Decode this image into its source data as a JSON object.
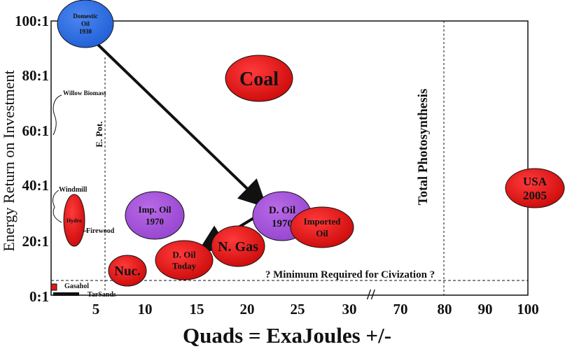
{
  "chart_data": {
    "type": "bubble",
    "title": "",
    "xlabel": "Quads = ExaJoules +/-",
    "ylabel": "Energy Return on Investment",
    "x_tick_labels": [
      "5",
      "10",
      "15",
      "20",
      "25",
      "30",
      "70",
      "80",
      "90",
      "100"
    ],
    "y_tick_labels": [
      "0:1",
      "20:1",
      "40:1",
      "60:1",
      "80:1",
      "100:1"
    ],
    "ylim": [
      0,
      100
    ],
    "x_axis_break": "//",
    "axis_break_between": [
      "30",
      "70"
    ],
    "reference_lines": [
      {
        "label": "? Minimum Required for Civization ?",
        "orientation": "horizontal",
        "y": 5
      },
      {
        "label": "Total Photosynthesis",
        "orientation": "vertical",
        "x": 80
      },
      {
        "label": "E. Pot.",
        "orientation": "vertical",
        "x": 6
      }
    ],
    "bubbles": [
      {
        "label_lines": [
          "Domestic",
          "Oil",
          "1930"
        ],
        "x": 3.5,
        "y": 100,
        "color": "#2f6fe0"
      },
      {
        "label_lines": [
          "Coal"
        ],
        "x": 21,
        "y": 80,
        "color": "#e01818"
      },
      {
        "label_lines": [
          "USA",
          "2005"
        ],
        "x": 100,
        "y": 40,
        "color": "#e01818"
      },
      {
        "label_lines": [
          "Imp. Oil",
          "1970"
        ],
        "x": 10,
        "y": 30,
        "color": "#a757d8"
      },
      {
        "label_lines": [
          "D. Oil",
          "1970"
        ],
        "x": 23,
        "y": 30,
        "color": "#a757d8"
      },
      {
        "label_lines": [
          "Imported",
          "Oil"
        ],
        "x": 26.5,
        "y": 25,
        "color": "#e01818"
      },
      {
        "label_lines": [
          "N. Gas"
        ],
        "x": 20,
        "y": 18,
        "color": "#e01818"
      },
      {
        "label_lines": [
          "D. Oil",
          "Today"
        ],
        "x": 14.5,
        "y": 13,
        "color": "#e01818"
      },
      {
        "label_lines": [
          "Nuc."
        ],
        "x": 8.5,
        "y": 9,
        "color": "#e01818"
      },
      {
        "label_lines": [
          "Hydro"
        ],
        "x": 2.5,
        "y": 27,
        "color": "#e01818"
      }
    ],
    "small_items": [
      {
        "label": "Willow Biomass",
        "y": 75
      },
      {
        "label": "Windmill",
        "y": 39
      },
      {
        "label": "Firewood",
        "y": 23
      },
      {
        "label": "Gasahol",
        "y": 2
      },
      {
        "label": "TarSands",
        "y": 0.5
      }
    ],
    "arrows": [
      {
        "from": "Domestic Oil 1930",
        "to": "D. Oil 1970"
      },
      {
        "from": "D. Oil 1970",
        "to": "D. Oil Today"
      }
    ]
  },
  "colors": {
    "red": "#e01818",
    "blue": "#2f6fe0",
    "purple": "#a757d8"
  }
}
